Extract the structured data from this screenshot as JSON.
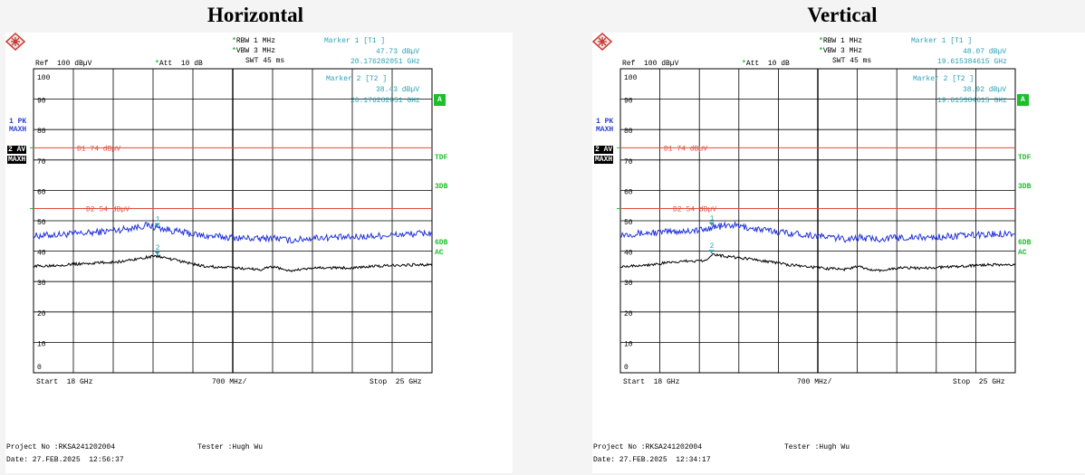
{
  "panels": [
    {
      "title": "Horizontal",
      "rbw": "RBW 1 MHz",
      "vbw": "VBW 3 MHz",
      "swt": "SWT 45 ms",
      "ref": "Ref  100 dBµV",
      "att": "Att  10 dB",
      "marker1_label": "Marker 1 [T1 ]",
      "marker1_value": "47.73 dBµV",
      "marker1_freq": "20.176282051 GHz",
      "marker2_label": "Marker 2 [T2 ]",
      "marker2_value": "38.43 dBµV",
      "marker2_freq": "20.176282051 GHz",
      "trace1_tag": "1 PK",
      "trace1_mode": "MAXH",
      "trace2_tag": "2 AV",
      "trace2_mode": "MAXH",
      "side_a": "A",
      "side_tdf": "TDF",
      "side_3db": "3DB",
      "side_6db": "6DB",
      "side_ac": "AC",
      "start": "Start  18 GHz",
      "span": "700 MHz/",
      "stop": "Stop  25 GHz",
      "project": "Project No :RKSA241202004",
      "tester": "Tester :Hugh Wu",
      "date": "Date: 27.FEB.2025  12:56:37"
    },
    {
      "title": "Vertical",
      "rbw": "RBW 1 MHz",
      "vbw": "VBW 3 MHz",
      "swt": "SWT 45 ms",
      "ref": "Ref  100 dBµV",
      "att": "Att  10 dB",
      "marker1_label": "Marker 1 [T1 ]",
      "marker1_value": "48.07 dBµV",
      "marker1_freq": "19.615384615 GHz",
      "marker2_label": "Marker 2 [T2 ]",
      "marker2_value": "38.92 dBµV",
      "marker2_freq": "19.615384615 GHz",
      "trace1_tag": "1 PK",
      "trace1_mode": "MAXH",
      "trace2_tag": "2 AV",
      "trace2_mode": "MAXH",
      "side_a": "A",
      "side_tdf": "TDF",
      "side_3db": "3DB",
      "side_6db": "6DB",
      "side_ac": "AC",
      "start": "Start  18 GHz",
      "span": "700 MHz/",
      "stop": "Stop  25 GHz",
      "project": "Project No :RKSA241202004",
      "tester": "Tester :Hugh Wu",
      "date": "Date: 27.FEB.2025  12:34:17"
    }
  ],
  "chart_data": [
    {
      "type": "line",
      "title": "Horizontal",
      "xlim": [
        18,
        25
      ],
      "ylim": [
        0,
        100
      ],
      "x_unit": "GHz",
      "y_unit": "dBµV",
      "yticks": [
        0,
        10,
        20,
        30,
        40,
        50,
        60,
        70,
        80,
        90,
        100
      ],
      "limit_lines": [
        {
          "name": "D1 74 dBµV",
          "value": 74
        },
        {
          "name": "D2 54 dBµV",
          "value": 54
        }
      ],
      "x": [
        18.0,
        18.5,
        19.0,
        19.5,
        20.0,
        20.18,
        20.5,
        21.0,
        21.5,
        22.0,
        22.2,
        22.5,
        23.0,
        23.5,
        24.0,
        24.5,
        25.0
      ],
      "series": [
        {
          "name": "1 PK",
          "color": "#2233dd",
          "values": [
            45,
            45.5,
            46,
            47,
            48.5,
            47.7,
            46.5,
            45,
            44.5,
            44,
            44.5,
            43.5,
            44.5,
            44.5,
            45,
            45.5,
            46
          ]
        },
        {
          "name": "2 AV",
          "color": "#000000",
          "values": [
            35,
            35.5,
            36,
            36.5,
            38,
            38.4,
            37,
            35,
            34.5,
            34,
            35,
            33.5,
            34.5,
            34.5,
            35,
            35.5,
            35.5
          ]
        }
      ],
      "markers": [
        {
          "label": "1",
          "x": 20.176282051,
          "y": 47.73
        },
        {
          "label": "2",
          "x": 20.176282051,
          "y": 38.43
        }
      ]
    },
    {
      "type": "line",
      "title": "Vertical",
      "xlim": [
        18,
        25
      ],
      "ylim": [
        0,
        100
      ],
      "x_unit": "GHz",
      "y_unit": "dBµV",
      "yticks": [
        0,
        10,
        20,
        30,
        40,
        50,
        60,
        70,
        80,
        90,
        100
      ],
      "limit_lines": [
        {
          "name": "D1 74 dBµV",
          "value": 74
        },
        {
          "name": "D2 54 dBµV",
          "value": 54
        }
      ],
      "x": [
        18.0,
        18.5,
        19.0,
        19.5,
        19.62,
        20.0,
        20.5,
        21.0,
        21.5,
        22.0,
        22.2,
        22.5,
        23.0,
        23.5,
        24.0,
        24.5,
        25.0
      ],
      "series": [
        {
          "name": "1 PK",
          "color": "#2233dd",
          "values": [
            45.5,
            46,
            46.5,
            47,
            48,
            48.5,
            47,
            46,
            45,
            44,
            44.5,
            44,
            44.5,
            44.5,
            45,
            45.5,
            46
          ]
        },
        {
          "name": "2 AV",
          "color": "#000000",
          "values": [
            35,
            35.5,
            36.5,
            37,
            38.9,
            38,
            37,
            35.5,
            34.5,
            34,
            35,
            33.5,
            34.5,
            34.5,
            35,
            35.5,
            35.5
          ]
        }
      ],
      "markers": [
        {
          "label": "1",
          "x": 19.615384615,
          "y": 48.07
        },
        {
          "label": "2",
          "x": 19.615384615,
          "y": 38.92
        }
      ]
    }
  ]
}
